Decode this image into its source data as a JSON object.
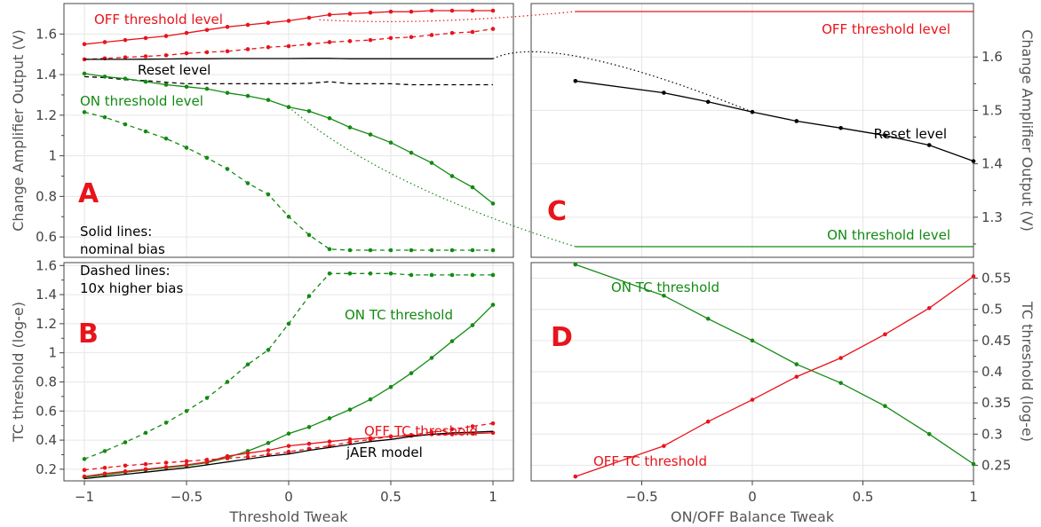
{
  "colors": {
    "red": "#e8141b",
    "green": "#138a13",
    "black": "#000000"
  },
  "notes": {
    "solid1": "Solid lines:",
    "solid2": "nominal bias",
    "dashed1": "Dashed lines:",
    "dashed2": "10x higher bias"
  },
  "chart_data": [
    {
      "id": "A",
      "type": "line",
      "panel_label": "A",
      "ylabel": "Change Amplifier Output (V)",
      "xlim": [
        -1.1,
        1.1
      ],
      "ylim": [
        0.5,
        1.75
      ],
      "yticks": [
        0.6,
        0.8,
        1,
        1.2,
        1.4,
        1.6
      ],
      "ytick_labels": [
        "0.6",
        "0.8",
        "1",
        "1.2",
        "1.4",
        "1.6"
      ],
      "x": [
        -1,
        -0.9,
        -0.8,
        -0.7,
        -0.6,
        -0.5,
        -0.4,
        -0.3,
        -0.2,
        -0.1,
        0,
        0.1,
        0.2,
        0.3,
        0.4,
        0.5,
        0.6,
        0.7,
        0.8,
        0.9,
        1
      ],
      "series": [
        {
          "name": "OFF threshold level",
          "color": "red",
          "style": "solid",
          "markers": true,
          "y": [
            1.55,
            1.56,
            1.57,
            1.58,
            1.59,
            1.605,
            1.62,
            1.635,
            1.645,
            1.655,
            1.665,
            1.68,
            1.695,
            1.7,
            1.705,
            1.71,
            1.71,
            1.715,
            1.715,
            1.715,
            1.715
          ]
        },
        {
          "color": "red",
          "style": "dashed",
          "markers": true,
          "y": [
            1.475,
            1.48,
            1.485,
            1.49,
            1.495,
            1.505,
            1.51,
            1.515,
            1.525,
            1.535,
            1.54,
            1.55,
            1.56,
            1.565,
            1.57,
            1.58,
            1.585,
            1.595,
            1.605,
            1.61,
            1.625
          ]
        },
        {
          "name": "Reset level",
          "color": "black",
          "style": "solid",
          "markers": false,
          "y": [
            1.475,
            1.475,
            1.475,
            1.476,
            1.477,
            1.478,
            1.478,
            1.479,
            1.479,
            1.479,
            1.479,
            1.48,
            1.48,
            1.478,
            1.478,
            1.478,
            1.478,
            1.478,
            1.478,
            1.478,
            1.478
          ]
        },
        {
          "color": "black",
          "style": "dashed",
          "markers": false,
          "y": [
            1.39,
            1.385,
            1.375,
            1.37,
            1.362,
            1.355,
            1.355,
            1.355,
            1.355,
            1.355,
            1.355,
            1.357,
            1.365,
            1.355,
            1.355,
            1.355,
            1.35,
            1.35,
            1.35,
            1.35,
            1.35
          ]
        },
        {
          "name": "ON threshold level",
          "color": "green",
          "style": "solid",
          "markers": true,
          "y": [
            1.405,
            1.39,
            1.38,
            1.365,
            1.35,
            1.34,
            1.33,
            1.31,
            1.295,
            1.275,
            1.24,
            1.22,
            1.185,
            1.14,
            1.105,
            1.065,
            1.015,
            0.965,
            0.9,
            0.845,
            0.765
          ]
        },
        {
          "color": "green",
          "style": "dashed",
          "markers": true,
          "y": [
            1.215,
            1.19,
            1.155,
            1.12,
            1.085,
            1.04,
            0.99,
            0.935,
            0.865,
            0.81,
            0.7,
            0.61,
            0.54,
            0.535,
            0.535,
            0.535,
            0.535,
            0.535,
            0.535,
            0.535,
            0.535
          ]
        }
      ]
    },
    {
      "id": "B",
      "type": "line",
      "panel_label": "B",
      "xlabel": "Threshold Tweak",
      "ylabel": "TC threshold (log-e)",
      "xlim": [
        -1.1,
        1.1
      ],
      "ylim": [
        0.12,
        1.62
      ],
      "xticks": [
        -1,
        -0.5,
        0,
        0.5,
        1
      ],
      "xtick_labels": [
        "−1",
        "−0.5",
        "0",
        "0.5",
        "1"
      ],
      "yticks": [
        0.2,
        0.4,
        0.6,
        0.8,
        1,
        1.2,
        1.4,
        1.6
      ],
      "ytick_labels": [
        "0.2",
        "0.4",
        "0.6",
        "0.8",
        "1",
        "1.2",
        "1.4",
        "1.6"
      ],
      "x": [
        -1,
        -0.9,
        -0.8,
        -0.7,
        -0.6,
        -0.5,
        -0.4,
        -0.3,
        -0.2,
        -0.1,
        0,
        0.1,
        0.2,
        0.3,
        0.4,
        0.5,
        0.6,
        0.7,
        0.8,
        0.9,
        1
      ],
      "series": [
        {
          "name": "ON TC threshold",
          "color": "green",
          "style": "solid",
          "markers": true,
          "y": [
            0.145,
            0.16,
            0.18,
            0.195,
            0.21,
            0.225,
            0.245,
            0.28,
            0.325,
            0.38,
            0.445,
            0.49,
            0.55,
            0.61,
            0.68,
            0.765,
            0.86,
            0.965,
            1.08,
            1.19,
            1.33
          ]
        },
        {
          "color": "green",
          "style": "dashed",
          "markers": true,
          "y": [
            0.27,
            0.325,
            0.385,
            0.45,
            0.52,
            0.6,
            0.69,
            0.8,
            0.92,
            1.02,
            1.2,
            1.39,
            1.545,
            1.545,
            1.545,
            1.545,
            1.535,
            1.535,
            1.535,
            1.535,
            1.535
          ]
        },
        {
          "name": "OFF TC threshold",
          "color": "red",
          "style": "solid",
          "markers": true,
          "y": [
            0.15,
            0.17,
            0.185,
            0.2,
            0.215,
            0.23,
            0.25,
            0.29,
            0.31,
            0.33,
            0.36,
            0.375,
            0.39,
            0.405,
            0.415,
            0.425,
            0.43,
            0.44,
            0.44,
            0.445,
            0.45
          ]
        },
        {
          "color": "red",
          "style": "dashed",
          "markers": true,
          "y": [
            0.195,
            0.21,
            0.225,
            0.235,
            0.245,
            0.255,
            0.265,
            0.275,
            0.285,
            0.3,
            0.32,
            0.34,
            0.36,
            0.385,
            0.405,
            0.425,
            0.435,
            0.455,
            0.475,
            0.495,
            0.515
          ]
        },
        {
          "name": "jAER model",
          "color": "black",
          "style": "solid",
          "markers": false,
          "y": [
            0.135,
            0.15,
            0.165,
            0.18,
            0.195,
            0.21,
            0.23,
            0.25,
            0.27,
            0.29,
            0.305,
            0.33,
            0.35,
            0.37,
            0.39,
            0.405,
            0.425,
            0.44,
            0.45,
            0.455,
            0.46
          ]
        }
      ]
    },
    {
      "id": "C",
      "type": "line",
      "panel_label": "C",
      "ylabel": "Change Amplifier Output (V)",
      "xlim": [
        -1,
        1
      ],
      "ylim": [
        1.225,
        1.7
      ],
      "yticks": [
        1.3,
        1.4,
        1.5,
        1.6
      ],
      "ytick_labels": [
        "1.3",
        "1.4",
        "1.5",
        "1.6"
      ],
      "series": [
        {
          "name": "OFF threshold level",
          "color": "red",
          "style": "solid",
          "markers": false,
          "x": [
            -0.8,
            1
          ],
          "y": [
            1.685,
            1.685
          ]
        },
        {
          "name": "Reset level",
          "color": "black",
          "style": "solid",
          "markers": true,
          "x": [
            -0.8,
            -0.4,
            -0.2,
            0,
            0.2,
            0.4,
            0.6,
            0.8,
            1
          ],
          "y": [
            1.555,
            1.533,
            1.516,
            1.497,
            1.48,
            1.467,
            1.453,
            1.435,
            1.405
          ]
        },
        {
          "name": "ON threshold level",
          "color": "green",
          "style": "solid",
          "markers": false,
          "x": [
            -0.8,
            1
          ],
          "y": [
            1.245,
            1.245
          ]
        }
      ]
    },
    {
      "id": "D",
      "type": "line",
      "panel_label": "D",
      "xlabel": "ON/OFF Balance Tweak",
      "ylabel": "TC threshold (log-e)",
      "xlim": [
        -1,
        1
      ],
      "ylim": [
        0.225,
        0.575
      ],
      "xticks": [
        -0.5,
        0,
        0.5,
        1
      ],
      "xtick_labels": [
        "−0.5",
        "0",
        "0.5",
        "1"
      ],
      "yticks": [
        0.25,
        0.3,
        0.35,
        0.4,
        0.45,
        0.5,
        0.55
      ],
      "ytick_labels": [
        "0.25",
        "0.3",
        "0.35",
        "0.4",
        "0.45",
        "0.5",
        "0.55"
      ],
      "x": [
        -0.8,
        -0.4,
        -0.2,
        0,
        0.2,
        0.4,
        0.6,
        0.8,
        1
      ],
      "series": [
        {
          "name": "ON TC threshold",
          "color": "green",
          "style": "solid",
          "markers": true,
          "y": [
            0.572,
            0.522,
            0.485,
            0.45,
            0.412,
            0.382,
            0.345,
            0.3,
            0.252
          ]
        },
        {
          "name": "OFF TC threshold",
          "color": "red",
          "style": "solid",
          "markers": true,
          "y": [
            0.232,
            0.281,
            0.32,
            0.355,
            0.392,
            0.422,
            0.46,
            0.502,
            0.553
          ]
        }
      ]
    }
  ]
}
